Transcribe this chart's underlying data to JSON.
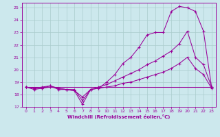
{
  "xlabel": "Windchill (Refroidissement éolien,°C)",
  "bg_color": "#cce8ed",
  "grid_color": "#aacccc",
  "line_color": "#990099",
  "xlim": [
    -0.5,
    23.5
  ],
  "ylim": [
    17,
    25.4
  ],
  "xticks": [
    0,
    1,
    2,
    3,
    4,
    5,
    6,
    7,
    8,
    9,
    10,
    11,
    12,
    13,
    14,
    15,
    16,
    17,
    18,
    19,
    20,
    21,
    22,
    23
  ],
  "yticks": [
    17,
    18,
    19,
    20,
    21,
    22,
    23,
    24,
    25
  ],
  "line1_x": [
    0,
    1,
    2,
    3,
    4,
    5,
    6,
    7,
    8,
    9,
    10,
    11,
    12,
    13,
    14,
    15,
    16,
    17,
    18,
    19,
    20,
    21,
    22,
    23
  ],
  "line1_y": [
    18.6,
    18.4,
    18.5,
    18.7,
    18.4,
    18.4,
    18.3,
    17.2,
    18.4,
    18.5,
    19.0,
    19.6,
    20.5,
    21.0,
    21.8,
    22.8,
    23.0,
    23.0,
    24.7,
    25.1,
    25.0,
    24.7,
    23.1,
    18.6
  ],
  "line2_x": [
    0,
    1,
    2,
    3,
    4,
    5,
    6,
    7,
    8,
    9,
    10,
    11,
    12,
    13,
    14,
    15,
    16,
    17,
    18,
    19,
    20,
    21,
    22,
    23
  ],
  "line2_y": [
    18.6,
    18.5,
    18.6,
    18.7,
    18.5,
    18.4,
    18.4,
    17.5,
    18.4,
    18.6,
    18.8,
    19.1,
    19.4,
    19.7,
    20.0,
    20.4,
    20.7,
    21.1,
    21.5,
    22.1,
    23.1,
    21.0,
    20.4,
    18.6
  ],
  "line3_x": [
    0,
    1,
    2,
    3,
    4,
    5,
    6,
    7,
    8,
    9,
    10,
    11,
    12,
    13,
    14,
    15,
    16,
    17,
    18,
    19,
    20,
    21,
    22,
    23
  ],
  "line3_y": [
    18.6,
    18.5,
    18.5,
    18.6,
    18.5,
    18.4,
    18.3,
    17.8,
    18.4,
    18.5,
    18.6,
    18.7,
    18.9,
    19.0,
    19.2,
    19.4,
    19.6,
    19.8,
    20.1,
    20.5,
    21.0,
    20.1,
    19.6,
    18.5
  ],
  "line4_x": [
    0,
    18,
    19,
    23
  ],
  "line4_y": [
    18.6,
    18.6,
    18.6,
    18.6
  ]
}
